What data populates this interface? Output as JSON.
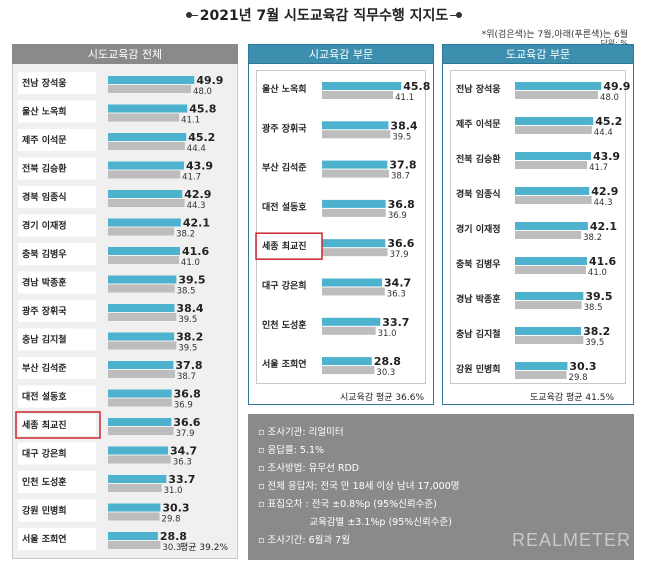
{
  "title": "2021년 7월 시도교육감 직무수행 지지도",
  "note": "*위(검은색)는 7월,아래(푸른색)는 6월",
  "unit": "단위: %",
  "chart_data": [
    {
      "type": "bar",
      "title": "시도교육감 전체",
      "categories": [
        "전남 장석웅",
        "울산 노옥희",
        "제주 이석문",
        "전북 김승환",
        "경북 임종식",
        "경기 이재정",
        "충북 김병우",
        "경남 박종훈",
        "광주 장휘국",
        "충남 김지철",
        "부산 김석준",
        "대전 설동호",
        "세종 최교진",
        "대구 강은희",
        "인천 도성훈",
        "강원 민병희",
        "서울 조희연"
      ],
      "series": [
        {
          "name": "7월",
          "values": [
            49.9,
            45.8,
            45.2,
            43.9,
            42.9,
            42.1,
            41.6,
            39.5,
            38.4,
            38.2,
            37.8,
            36.8,
            36.6,
            34.7,
            33.7,
            30.3,
            28.8
          ]
        },
        {
          "name": "6월",
          "values": [
            48.0,
            41.1,
            44.4,
            41.7,
            44.3,
            38.2,
            41.0,
            38.5,
            39.5,
            39.5,
            38.7,
            36.9,
            37.9,
            36.3,
            31.0,
            29.8,
            30.3
          ]
        }
      ],
      "highlight": "세종 최교진",
      "average_label": "평균 39.2%"
    },
    {
      "type": "bar",
      "title": "시교육감 부문",
      "categories": [
        "울산 노옥희",
        "광주 장휘국",
        "부산 김석준",
        "대전 설동호",
        "세종 최교진",
        "대구 강은희",
        "인천 도성훈",
        "서울 조희연"
      ],
      "series": [
        {
          "name": "7월",
          "values": [
            45.8,
            38.4,
            37.8,
            36.8,
            36.6,
            34.7,
            33.7,
            28.8
          ]
        },
        {
          "name": "6월",
          "values": [
            41.1,
            39.5,
            38.7,
            36.9,
            37.9,
            36.3,
            31.0,
            30.3
          ]
        }
      ],
      "highlight": "세종 최교진",
      "average_label": "시교육감 평균 36.6%"
    },
    {
      "type": "bar",
      "title": "도교육감 부문",
      "categories": [
        "전남 장석웅",
        "제주 이석문",
        "전북 김승환",
        "경북 임종식",
        "경기 이재정",
        "충북 김병우",
        "경남 박종훈",
        "충남 김지철",
        "강원 민병희"
      ],
      "series": [
        {
          "name": "7월",
          "values": [
            49.9,
            45.2,
            43.9,
            42.9,
            42.1,
            41.6,
            39.5,
            38.2,
            30.3
          ]
        },
        {
          "name": "6월",
          "values": [
            48.0,
            44.4,
            41.7,
            44.3,
            38.2,
            41.0,
            38.5,
            39.5,
            29.8
          ]
        }
      ],
      "highlight": "",
      "average_label": "도교육감 평균 41.5%"
    }
  ],
  "colors": {
    "current_bar": "#4cb2ce",
    "previous_bar": "#bdbdbd",
    "highlight_border": "#d0262f",
    "header_gray": "#8a8a8a",
    "header_blue": "#3d8fb0"
  },
  "info": [
    "▫ 조사기관: 리얼미터",
    "▫ 응답률: 5.1%",
    "▫ 조사방법: 유무선 RDD",
    "▫ 전체 응답자: 전국 만 18세 이상 남녀 17,000명",
    "▫ 표집오차 : 전국 ±0.8%p (95%신뢰수준)",
    "                 교육감별 ±3.1%p (95%신뢰수준)",
    "▫ 조사기간: 6월과 7월"
  ],
  "brand": "REALMETER"
}
